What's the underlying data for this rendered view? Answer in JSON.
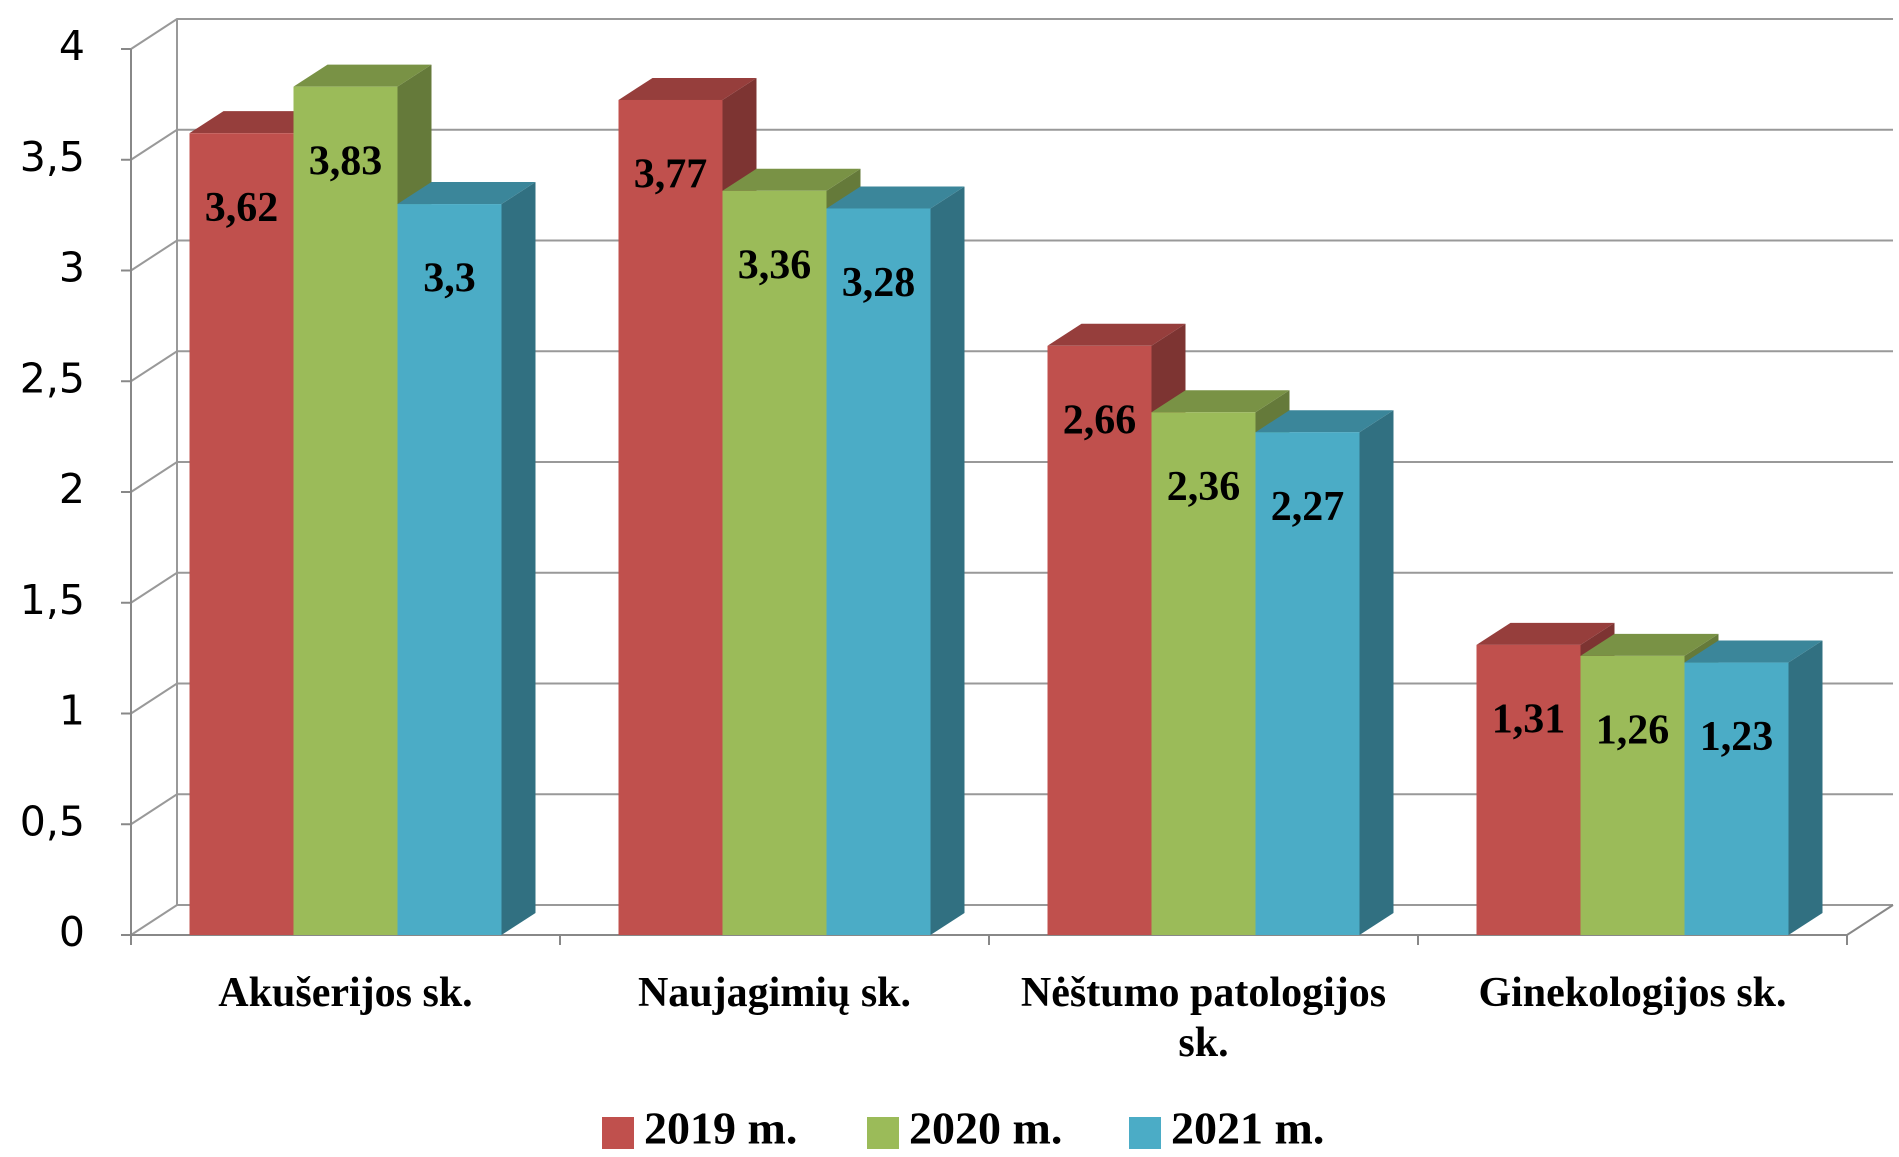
{
  "chart_data": {
    "type": "bar3d",
    "categories": [
      "Akušerijos sk.",
      "Naujagimių sk.",
      "Nėštumo patologijos sk.",
      "Ginekologijos sk."
    ],
    "series": [
      {
        "name": "2019 m.",
        "color": "#c0504d",
        "values": [
          3.62,
          3.77,
          2.66,
          1.31
        ],
        "value_labels": [
          "3,62",
          "3,77",
          "2,66",
          "1,31"
        ]
      },
      {
        "name": "2020 m.",
        "color": "#9bbb59",
        "values": [
          3.83,
          3.36,
          2.36,
          1.26
        ],
        "value_labels": [
          "3,83",
          "3,36",
          "2,36",
          "1,26"
        ]
      },
      {
        "name": "2021 m.",
        "color": "#4bacc6",
        "values": [
          3.3,
          3.28,
          2.27,
          1.23
        ],
        "value_labels": [
          "3,3",
          "3,28",
          "2,27",
          "1,23"
        ]
      }
    ],
    "ylim": [
      0,
      4
    ],
    "yticks": [
      0,
      {
        "value": 0.5,
        "label": "0,5"
      },
      1,
      {
        "value": 1.5,
        "label": "1,5"
      },
      2,
      {
        "value": 2.5,
        "label": "2,5"
      },
      3,
      {
        "value": 3.5,
        "label": "3,5"
      },
      4
    ],
    "grid": true,
    "legend": "bottom"
  }
}
